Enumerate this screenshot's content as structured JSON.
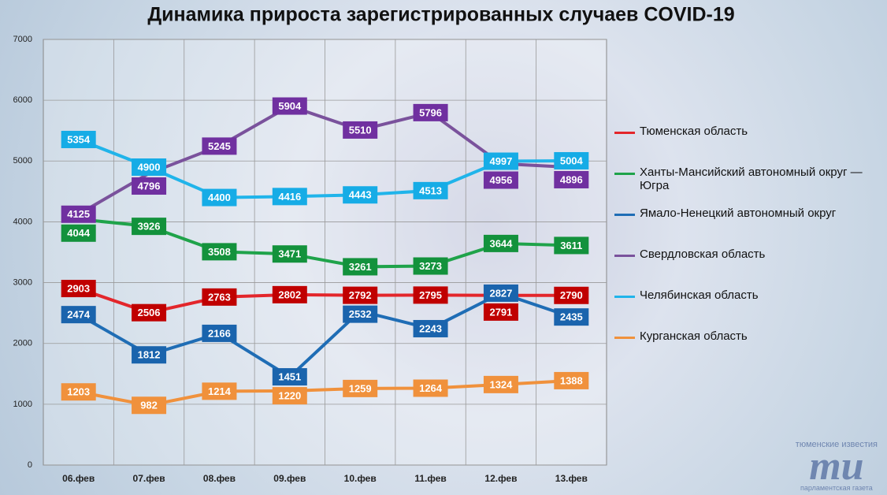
{
  "chart_data": {
    "type": "line",
    "title": "Динамика прироста зарегистрированных случаев COVID-19",
    "categories": [
      "06.фев",
      "07.фев",
      "08.фев",
      "09.фев",
      "10.фев",
      "11.фев",
      "12.фев",
      "13.фев"
    ],
    "ylim": [
      0,
      7000
    ],
    "yticks": [
      0,
      1000,
      2000,
      3000,
      4000,
      5000,
      6000,
      7000
    ],
    "grid": true,
    "legend": "right",
    "series": [
      {
        "name": "Тюменская область",
        "color": "#e3262b",
        "label_color": "#c00000",
        "values": [
          2903,
          2506,
          2763,
          2802,
          2792,
          2795,
          2791,
          2790
        ]
      },
      {
        "name": "Ханты-Мансийский автономный округ — Югра",
        "color": "#1fa34a",
        "label_color": "#13923c",
        "values": [
          4044,
          3926,
          3508,
          3471,
          3261,
          3273,
          3644,
          3611
        ]
      },
      {
        "name": "Ямало-Ненецкий автономный округ",
        "color": "#1f6db5",
        "label_color": "#1a64ad",
        "values": [
          2474,
          1812,
          2166,
          1451,
          2532,
          2243,
          2827,
          2435
        ]
      },
      {
        "name": "Свердловская область",
        "color": "#7a529c",
        "label_color": "#7030a0",
        "values": [
          4125,
          4796,
          5245,
          5904,
          5510,
          5796,
          4956,
          4896
        ]
      },
      {
        "name": "Челябинская область",
        "color": "#20b4ea",
        "label_color": "#16ace6",
        "values": [
          5354,
          4900,
          4400,
          4416,
          4443,
          4513,
          4997,
          5004
        ]
      },
      {
        "name": "Курганская область",
        "color": "#f0913c",
        "label_color": "#f0913c",
        "values": [
          1203,
          982,
          1214,
          1220,
          1259,
          1264,
          1324,
          1388
        ]
      }
    ]
  },
  "logo": {
    "top": "тюменские известия",
    "main": "mu",
    "bottom": "парламентская газета"
  }
}
